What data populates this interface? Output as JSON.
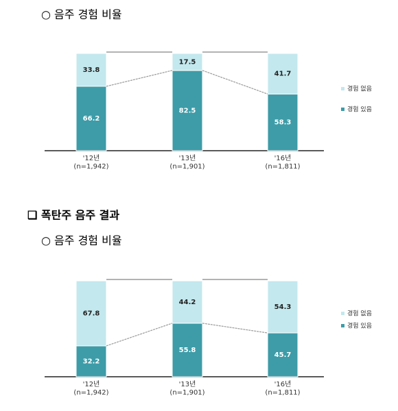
{
  "section_heading": "❑ 폭탄주 음주 결과",
  "chart_data": [
    {
      "type": "stacked_bar",
      "title": "○ 음주 경험 비율",
      "categories": [
        "'12년",
        "'13년",
        "'16년"
      ],
      "sample_sizes": [
        "(n=1,942)",
        "(n=1,901)",
        "(n=1,811)"
      ],
      "series": [
        {
          "name": "경험 있음",
          "color": "#3d9ca8",
          "values": [
            66.2,
            82.5,
            58.3
          ]
        },
        {
          "name": "경험 없음",
          "color": "#c3e8ee",
          "values": [
            33.8,
            17.5,
            41.7
          ]
        }
      ],
      "ylim": [
        0,
        100
      ]
    },
    {
      "type": "stacked_bar",
      "title": "○ 음주 경험 비율",
      "categories": [
        "'12년",
        "'13년",
        "'16년"
      ],
      "sample_sizes": [
        "(n=1,942)",
        "(n=1,901)",
        "(n=1,811)"
      ],
      "series": [
        {
          "name": "경험 있음",
          "color": "#3d9ca8",
          "values": [
            32.2,
            55.8,
            45.7
          ]
        },
        {
          "name": "경험 없음",
          "color": "#c3e8ee",
          "values": [
            67.8,
            44.2,
            54.3
          ]
        }
      ],
      "ylim": [
        0,
        100
      ]
    }
  ]
}
